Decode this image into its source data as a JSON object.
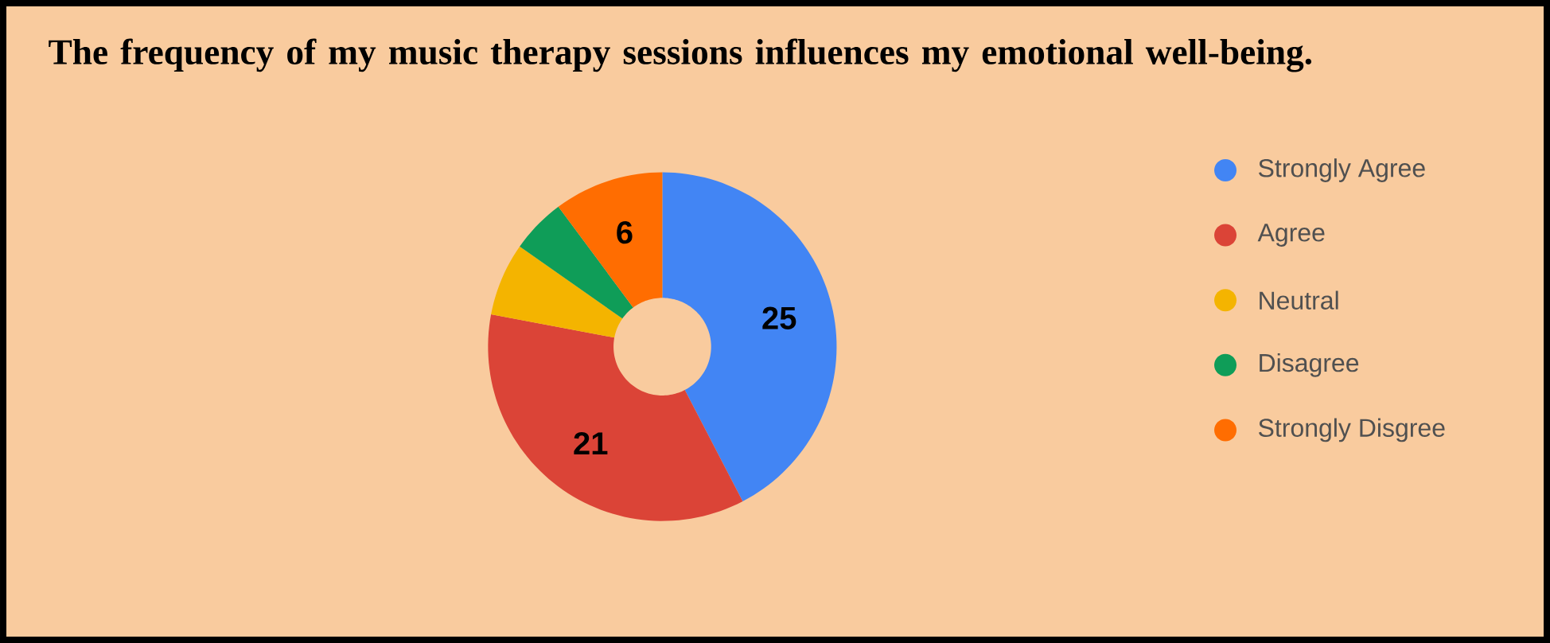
{
  "chart_data": {
    "type": "donut",
    "title": "The frequency of my music therapy sessions influences my emotional well-being.",
    "categories": [
      "Strongly Agree",
      "Agree",
      "Neutral",
      "Disagree",
      "Strongly Disgree"
    ],
    "values": [
      25,
      21,
      4,
      3,
      6
    ],
    "value_labels": [
      "25",
      "21",
      null,
      null,
      "6"
    ],
    "colors": [
      "#4285f4",
      "#db4437",
      "#f4b400",
      "#0f9d58",
      "#ff6d01"
    ],
    "legend": "right"
  }
}
